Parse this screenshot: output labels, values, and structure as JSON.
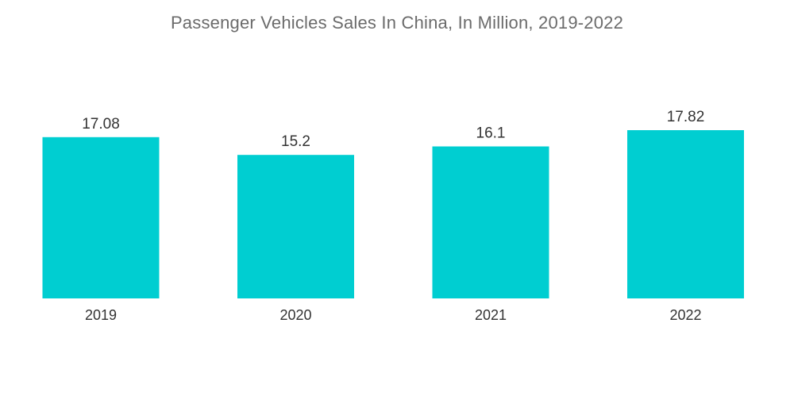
{
  "chart_data": {
    "type": "bar",
    "title": "Passenger Vehicles Sales In China, In Million, 2019-2022",
    "categories": [
      "2019",
      "2020",
      "2021",
      "2022"
    ],
    "values": [
      17.08,
      15.2,
      16.1,
      17.82
    ],
    "value_labels": [
      "17.08",
      "15.2",
      "16.1",
      "17.82"
    ],
    "xlabel": "",
    "ylabel": "",
    "ylim": [
      0,
      17.82
    ],
    "grid": false,
    "legend": "none",
    "bar_color": "#00CED1"
  }
}
